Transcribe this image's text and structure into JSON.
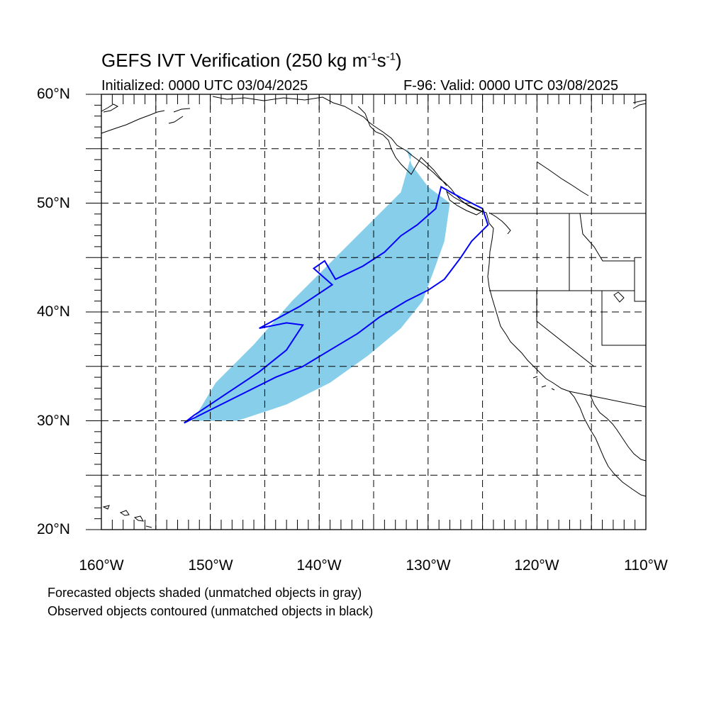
{
  "title_text": "GEFS IVT Verification (250 kg m",
  "title_sup1": "-1",
  "title_mid": "s",
  "title_sup2": "-1",
  "title_end": ")",
  "initialized": "Initialized: 0000 UTC 03/04/2025",
  "valid": "F-96: Valid: 0000 UTC 03/08/2025",
  "lat_labels": [
    "60°N",
    "50°N",
    "40°N",
    "30°N",
    "20°N"
  ],
  "lon_labels": [
    "160°W",
    "150°W",
    "140°W",
    "130°W",
    "120°W",
    "110°W"
  ],
  "notes": [
    "Forecasted objects shaded (unmatched objects in gray)",
    "Observed objects contoured (unmatched objects in black)"
  ],
  "colors": {
    "forecast_fill": "#87ceeb",
    "observed_contour": "#0000ff",
    "coast": "#000000",
    "grid": "#000000"
  },
  "chart_data": {
    "type": "map",
    "lon_range": [
      -160,
      -110
    ],
    "lat_range": [
      20,
      60
    ],
    "grid_lines": "dashed every 5°",
    "forecast_object": {
      "threshold_kg_m-1_s-1": 250,
      "approx_outline_lonlat": [
        [
          -151.6,
          30.0
        ],
        [
          -147.5,
          30.0
        ],
        [
          -143,
          31.5
        ],
        [
          -139,
          33.5
        ],
        [
          -135.5,
          36.0
        ],
        [
          -132.5,
          38.5
        ],
        [
          -130.5,
          41.0
        ],
        [
          -129.4,
          44.0
        ],
        [
          -128.5,
          46.5
        ],
        [
          -128.0,
          50.0
        ],
        [
          -130.0,
          51.5
        ],
        [
          -131.5,
          53.5
        ],
        [
          -132.0,
          55.0
        ],
        [
          -131.5,
          54.5
        ],
        [
          -132.5,
          51.0
        ],
        [
          -135.0,
          48.5
        ],
        [
          -138.5,
          45.0
        ],
        [
          -142.5,
          41.0
        ],
        [
          -146.0,
          37.0
        ],
        [
          -149.5,
          33.5
        ]
      ]
    },
    "observed_object": {
      "approx_outline_lonlat": [
        [
          -152.4,
          29.8
        ],
        [
          -151.5,
          30.5
        ],
        [
          -148.5,
          32.5
        ],
        [
          -145.5,
          34.5
        ],
        [
          -143.0,
          36.5
        ],
        [
          -141.5,
          38.8
        ],
        [
          -143.0,
          39.0
        ],
        [
          -145.5,
          38.5
        ],
        [
          -141.8,
          40.5
        ],
        [
          -138.8,
          42.5
        ],
        [
          -140.5,
          44.0
        ],
        [
          -139.5,
          44.7
        ],
        [
          -138.5,
          43.0
        ],
        [
          -136,
          44.2
        ],
        [
          -134,
          45.5
        ],
        [
          -132.5,
          47.0
        ],
        [
          -131.0,
          48.0
        ],
        [
          -129.3,
          49.5
        ],
        [
          -128.8,
          51.5
        ],
        [
          -127.0,
          50.5
        ],
        [
          -125.0,
          49.5
        ],
        [
          -124.5,
          48.0
        ],
        [
          -126,
          46.5
        ],
        [
          -127.0,
          45.0
        ],
        [
          -128.5,
          43.0
        ],
        [
          -130.0,
          42.0
        ],
        [
          -132.0,
          41.0
        ],
        [
          -134.5,
          39.5
        ],
        [
          -136.5,
          38.0
        ],
        [
          -139.0,
          36.5
        ],
        [
          -141.5,
          35.0
        ],
        [
          -144.0,
          34.0
        ],
        [
          -147.0,
          32.5
        ],
        [
          -150.0,
          31.0
        ],
        [
          -152.4,
          29.8
        ]
      ]
    }
  }
}
